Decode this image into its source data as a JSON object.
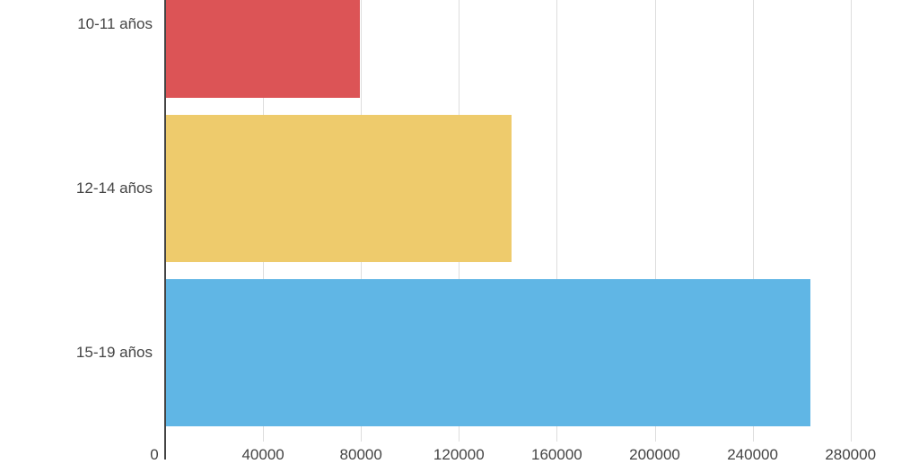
{
  "chart_data": {
    "type": "bar",
    "orientation": "horizontal",
    "title": "",
    "xlabel": "",
    "ylabel": "",
    "categories": [
      "10-11 años",
      "12-14 años",
      "15-19 años"
    ],
    "values": [
      79500,
      141700,
      263500
    ],
    "colors": [
      "#dc5456",
      "#eecb6c",
      "#60b6e5"
    ],
    "xlim": [
      0,
      280000
    ],
    "x_ticks": [
      "0",
      "40000",
      "80000",
      "120000",
      "160000",
      "200000",
      "240000",
      "280000"
    ],
    "grid": true,
    "legend": null
  }
}
